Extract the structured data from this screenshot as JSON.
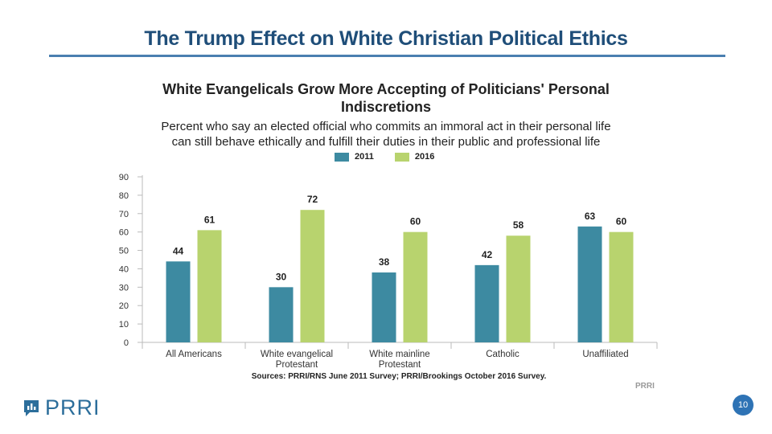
{
  "slide": {
    "title": "The Trump Effect on White Christian Political Ethics",
    "page_number": "10",
    "logo_text": "PRRI"
  },
  "chart_data": {
    "type": "bar",
    "title": "White Evangelicals Grow More Accepting of Politicians' Personal Indiscretions",
    "subtitle_lines": [
      "Percent who say an elected official who commits an immoral act in their personal life",
      "can still behave ethically and fulfill their duties in their public and professional life"
    ],
    "categories": [
      [
        "All Americans"
      ],
      [
        "White evangelical",
        "Protestant"
      ],
      [
        "White mainline",
        "Protestant"
      ],
      [
        "Catholic"
      ],
      [
        "Unaffiliated"
      ]
    ],
    "series": [
      {
        "name": "2011",
        "color": "#3d8aa1",
        "values": [
          44,
          30,
          38,
          42,
          63
        ]
      },
      {
        "name": "2016",
        "color": "#b8d36e",
        "values": [
          61,
          72,
          60,
          58,
          60
        ]
      }
    ],
    "ylim": [
      0,
      90
    ],
    "yticks": [
      0,
      10,
      20,
      30,
      40,
      50,
      60,
      70,
      80,
      90
    ],
    "grid": false,
    "legend_position": "top",
    "source": "Sources: PRRI/RNS June 2011 Survey; PRRI/Brookings October 2016 Survey.",
    "credit": "PRRI"
  }
}
